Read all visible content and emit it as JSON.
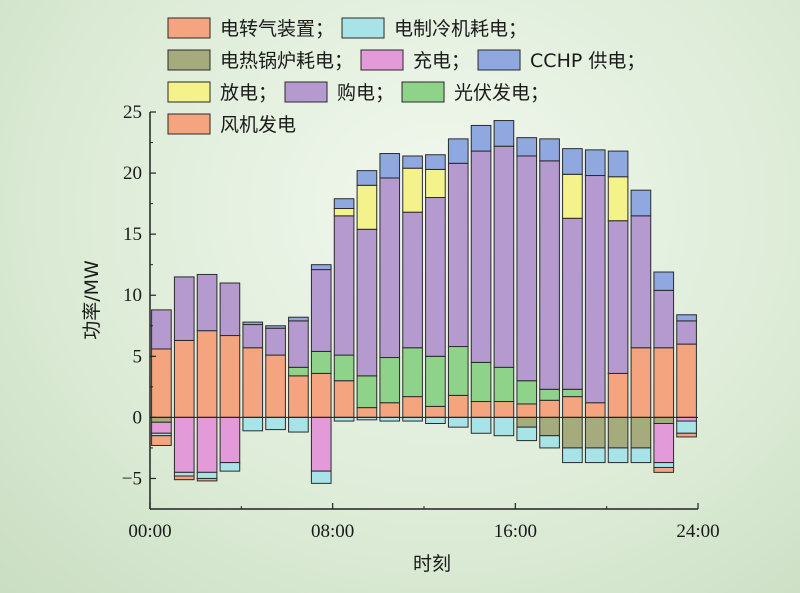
{
  "chart_data": {
    "type": "bar",
    "stacked": true,
    "xlabel": "时刻",
    "ylabel": "功率/MW",
    "ylim": [
      -7.5,
      25
    ],
    "yticks": [
      -5,
      0,
      5,
      10,
      15,
      20,
      25
    ],
    "xticks": [
      "00:00",
      "08:00",
      "16:00",
      "24:00"
    ],
    "hours": [
      1,
      2,
      3,
      4,
      5,
      6,
      7,
      8,
      9,
      10,
      11,
      12,
      13,
      14,
      15,
      16,
      17,
      18,
      19,
      20,
      21,
      22,
      23,
      24
    ],
    "series": [
      {
        "name": "风机发电",
        "sign": "pos",
        "color": "#f4a57f",
        "values": [
          5.6,
          6.3,
          7.1,
          6.7,
          5.7,
          5.1,
          3.4,
          3.6,
          3.0,
          0.8,
          1.2,
          1.7,
          0.9,
          1.8,
          1.3,
          1.3,
          1.1,
          1.4,
          1.7,
          1.2,
          3.6,
          5.7,
          5.7,
          6.0
        ]
      },
      {
        "name": "光伏发电",
        "sign": "pos",
        "color": "#8fd28a",
        "values": [
          0,
          0,
          0,
          0,
          0,
          0,
          0.7,
          1.8,
          2.1,
          2.6,
          3.7,
          4.0,
          4.1,
          4.0,
          3.2,
          2.8,
          1.9,
          0.9,
          0.6,
          0,
          0,
          0,
          0,
          0
        ]
      },
      {
        "name": "购电",
        "sign": "pos",
        "color": "#b59ad0",
        "values": [
          3.2,
          5.2,
          4.6,
          4.3,
          1.9,
          2.2,
          3.8,
          6.7,
          11.4,
          12.0,
          14.7,
          11.1,
          13.0,
          15.0,
          17.3,
          18.1,
          18.4,
          18.7,
          14.0,
          18.6,
          12.5,
          10.8,
          4.7,
          1.9
        ]
      },
      {
        "name": "放电",
        "sign": "pos",
        "color": "#f4f28a",
        "values": [
          0,
          0,
          0,
          0,
          0,
          0,
          0,
          0,
          0.6,
          3.6,
          0,
          3.6,
          2.3,
          0,
          0,
          0,
          0,
          0,
          3.6,
          0,
          3.6,
          0,
          0,
          0
        ]
      },
      {
        "name": "CCHP 供电",
        "sign": "pos",
        "color": "#8fa8e0",
        "values": [
          0,
          0,
          0,
          0,
          0.2,
          0.2,
          0.3,
          0.4,
          0.8,
          1.2,
          2.0,
          1.0,
          1.2,
          2.0,
          2.1,
          2.1,
          1.5,
          1.8,
          2.1,
          2.1,
          2.1,
          2.1,
          1.5,
          0.5
        ]
      },
      {
        "name": "电热锅炉耗电",
        "sign": "neg",
        "color": "#a5ab7d",
        "values": [
          -0.4,
          0,
          0,
          0,
          0,
          0,
          0,
          0,
          0,
          0,
          0,
          0,
          0,
          0,
          0,
          0,
          -0.8,
          -1.5,
          -2.5,
          -2.5,
          -2.5,
          -2.5,
          -0.5,
          0
        ]
      },
      {
        "name": "充电",
        "sign": "neg",
        "color": "#e29bd8",
        "values": [
          -0.9,
          -4.5,
          -4.5,
          -3.7,
          0,
          0,
          0,
          -4.4,
          0,
          0,
          0,
          0,
          0,
          0,
          0,
          0,
          0,
          0,
          0,
          0,
          0,
          0,
          -3.2,
          -0.3
        ]
      },
      {
        "name": "电制冷机耗电",
        "sign": "neg",
        "color": "#a8e3e8",
        "values": [
          -0.2,
          -0.3,
          -0.5,
          -0.7,
          -1.1,
          -1.0,
          -1.2,
          -1.0,
          -0.3,
          -0.2,
          -0.3,
          -0.3,
          -0.5,
          -0.8,
          -1.3,
          -1.5,
          -1.1,
          -1.0,
          -1.2,
          -1.2,
          -1.2,
          -1.2,
          -0.4,
          -1.0
        ]
      },
      {
        "name": "电转气装置",
        "sign": "neg",
        "color": "#f4a57f",
        "values": [
          -0.8,
          -0.3,
          -0.2,
          0,
          0,
          0,
          0,
          0,
          0,
          0,
          0,
          0,
          0,
          0,
          0,
          0,
          0,
          0,
          0,
          0,
          0,
          0,
          -0.4,
          -0.3
        ]
      }
    ],
    "legend": [
      {
        "label": "电转气装置；",
        "color": "#f4a57f"
      },
      {
        "label": "电制冷机耗电；",
        "color": "#a8e3e8"
      },
      {
        "label": "电热锅炉耗电；",
        "color": "#a5ab7d"
      },
      {
        "label": "充电；",
        "color": "#e29bd8"
      },
      {
        "label": "CCHP 供电；",
        "color": "#8fa8e0"
      },
      {
        "label": "放电；",
        "color": "#f4f28a"
      },
      {
        "label": "购电；",
        "color": "#b59ad0"
      },
      {
        "label": "光伏发电；",
        "color": "#8fd28a"
      },
      {
        "label": "风机发电",
        "color": "#f4a57f"
      }
    ]
  }
}
